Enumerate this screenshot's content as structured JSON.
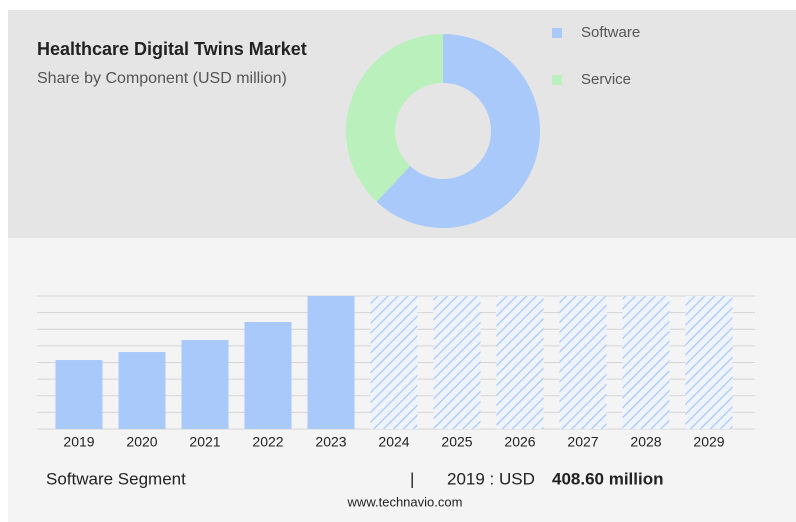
{
  "chart_data": [
    {
      "type": "pie",
      "donut": true,
      "title": "Healthcare Digital Twins Market",
      "subtitle": "Share by Component (USD million)",
      "categories": [
        "Software",
        "Service"
      ],
      "values": [
        62,
        38
      ],
      "colors": [
        "#a9c9fb",
        "#b9f0bc"
      ]
    },
    {
      "type": "bar",
      "categories": [
        "2019",
        "2020",
        "2021",
        "2022",
        "2023",
        "2024",
        "2025",
        "2026",
        "2027",
        "2028",
        "2029"
      ],
      "values": [
        408.6,
        456,
        527,
        634,
        788,
        null,
        null,
        null,
        null,
        null,
        null
      ],
      "color": "#a9c9fb",
      "ylim": [
        0,
        788
      ],
      "grid": true
    }
  ],
  "footer": {
    "segment": "Software Segment",
    "separator": "|",
    "summary": "2019 : USD",
    "value": "408.60 million",
    "source": "www.technavio.com"
  }
}
